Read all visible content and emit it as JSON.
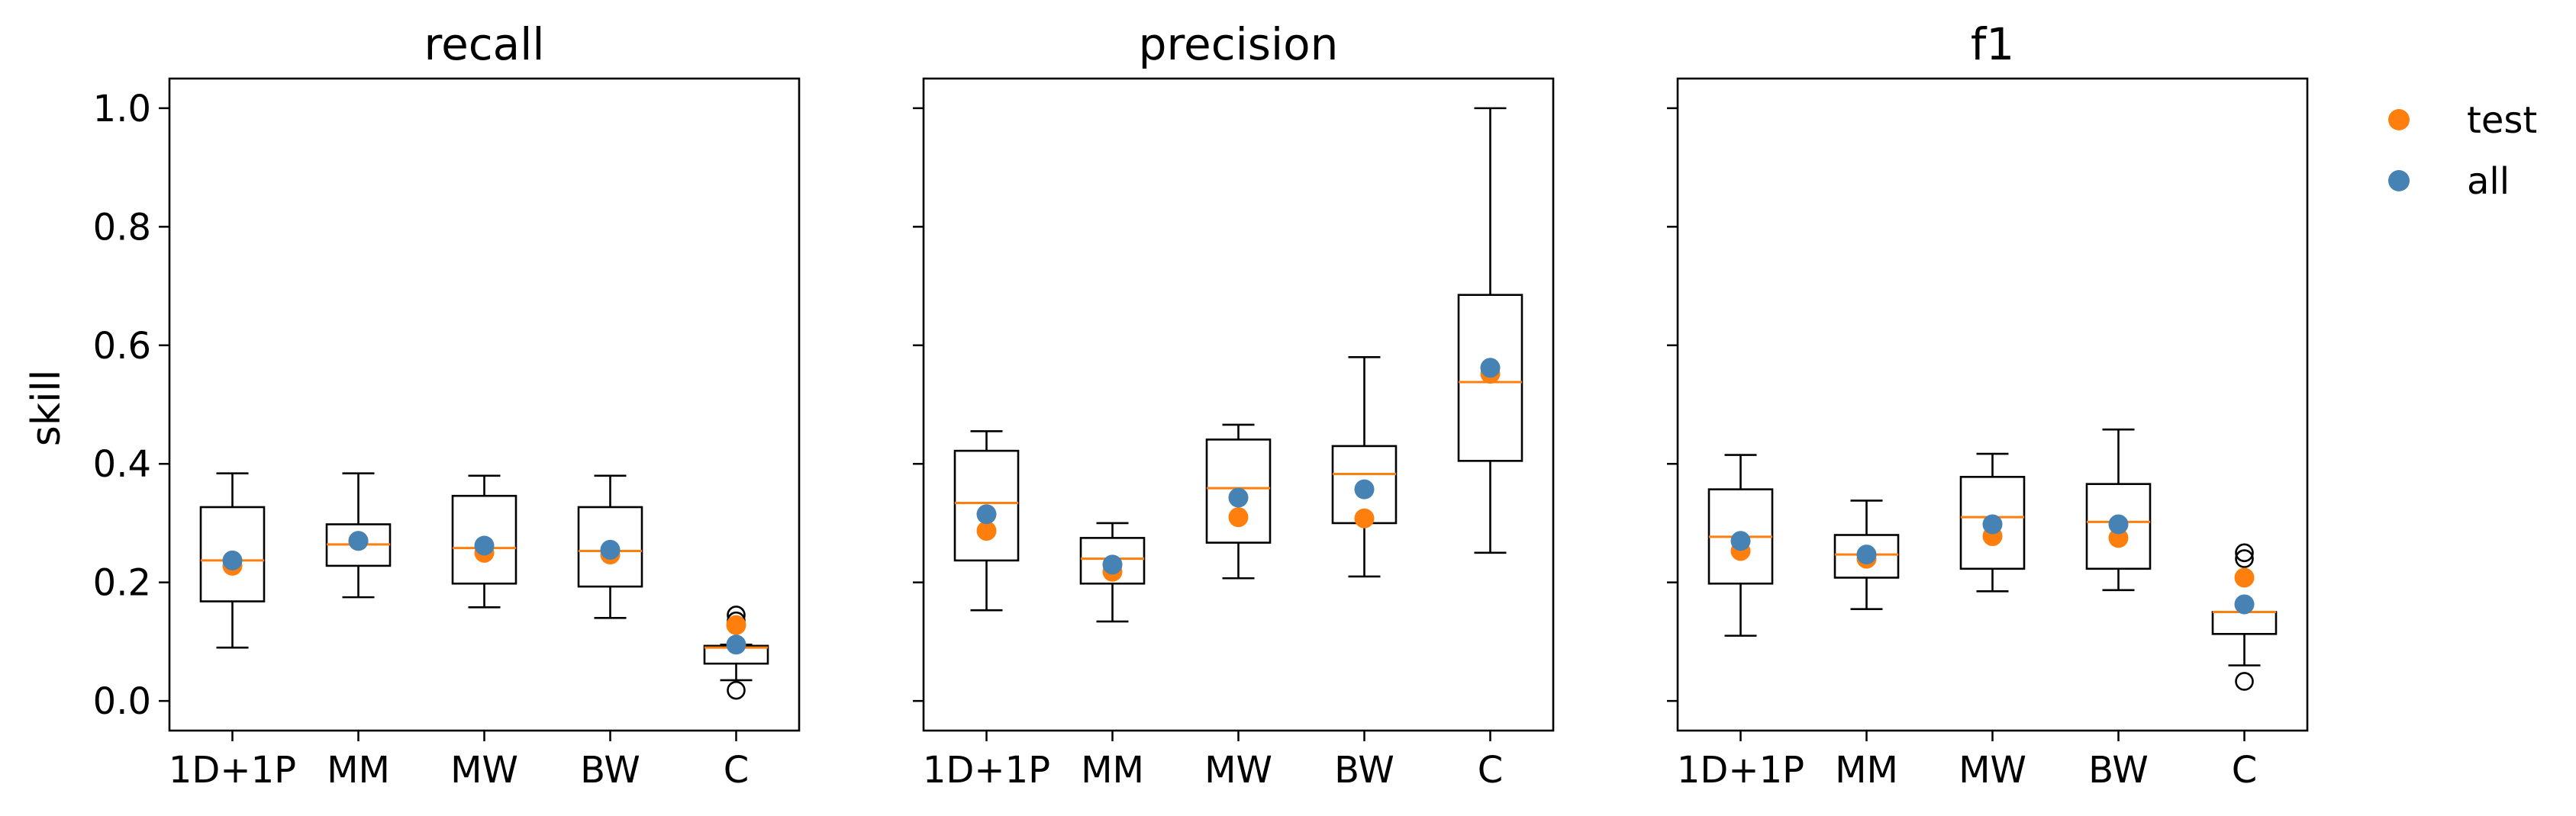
{
  "ylabel": "skill",
  "legend": {
    "placement": "upper-right-outside",
    "entries": [
      {
        "label": "test",
        "color": "#ff7f0e"
      },
      {
        "label": "all",
        "color": "#4682b4"
      }
    ]
  },
  "colors": {
    "median": "#ff7f0e",
    "test_point": "#ff7f0e",
    "all_point": "#4682b4",
    "box": "#000000"
  },
  "chart_data": [
    {
      "type": "box",
      "title": "recall",
      "categories": [
        "1D+1P",
        "MM",
        "MW",
        "BW",
        "C"
      ],
      "ylim": [
        -0.05,
        1.05
      ],
      "yticks": [
        0.0,
        0.2,
        0.4,
        0.6,
        0.8,
        1.0
      ],
      "ytick_labels": [
        "0.0",
        "0.2",
        "0.4",
        "0.6",
        "0.8",
        "1.0"
      ],
      "boxes": [
        {
          "whislo": 0.09,
          "q1": 0.168,
          "med": 0.237,
          "q3": 0.327,
          "whishi": 0.384,
          "fliers": []
        },
        {
          "whislo": 0.175,
          "q1": 0.228,
          "med": 0.264,
          "q3": 0.298,
          "whishi": 0.384,
          "fliers": []
        },
        {
          "whislo": 0.158,
          "q1": 0.198,
          "med": 0.258,
          "q3": 0.346,
          "whishi": 0.38,
          "fliers": []
        },
        {
          "whislo": 0.14,
          "q1": 0.193,
          "med": 0.253,
          "q3": 0.327,
          "whishi": 0.38,
          "fliers": []
        },
        {
          "whislo": 0.035,
          "q1": 0.063,
          "med": 0.09,
          "q3": 0.093,
          "whishi": 0.095,
          "fliers": [
            0.145,
            0.135,
            0.018
          ]
        }
      ],
      "series": [
        {
          "name": "test",
          "values": [
            0.228,
            0.27,
            0.25,
            0.247,
            0.128
          ]
        },
        {
          "name": "all",
          "values": [
            0.237,
            0.27,
            0.262,
            0.255,
            0.095
          ]
        }
      ]
    },
    {
      "type": "box",
      "title": "precision",
      "categories": [
        "1D+1P",
        "MM",
        "MW",
        "BW",
        "C"
      ],
      "ylim": [
        -0.05,
        1.05
      ],
      "yticks": [
        0.0,
        0.2,
        0.4,
        0.6,
        0.8,
        1.0
      ],
      "ytick_labels": [],
      "boxes": [
        {
          "whislo": 0.153,
          "q1": 0.237,
          "med": 0.334,
          "q3": 0.422,
          "whishi": 0.455,
          "fliers": []
        },
        {
          "whislo": 0.134,
          "q1": 0.198,
          "med": 0.24,
          "q3": 0.275,
          "whishi": 0.3,
          "fliers": []
        },
        {
          "whislo": 0.207,
          "q1": 0.267,
          "med": 0.359,
          "q3": 0.441,
          "whishi": 0.466,
          "fliers": []
        },
        {
          "whislo": 0.21,
          "q1": 0.3,
          "med": 0.383,
          "q3": 0.43,
          "whishi": 0.58,
          "fliers": []
        },
        {
          "whislo": 0.25,
          "q1": 0.405,
          "med": 0.538,
          "q3": 0.685,
          "whishi": 1.0,
          "fliers": []
        }
      ],
      "series": [
        {
          "name": "test",
          "values": [
            0.287,
            0.218,
            0.31,
            0.308,
            0.552
          ]
        },
        {
          "name": "all",
          "values": [
            0.315,
            0.23,
            0.343,
            0.357,
            0.562
          ]
        }
      ]
    },
    {
      "type": "box",
      "title": "f1",
      "categories": [
        "1D+1P",
        "MM",
        "MW",
        "BW",
        "C"
      ],
      "ylim": [
        -0.05,
        1.05
      ],
      "yticks": [
        0.0,
        0.2,
        0.4,
        0.6,
        0.8,
        1.0
      ],
      "ytick_labels": [],
      "boxes": [
        {
          "whislo": 0.11,
          "q1": 0.198,
          "med": 0.277,
          "q3": 0.357,
          "whishi": 0.415,
          "fliers": []
        },
        {
          "whislo": 0.155,
          "q1": 0.208,
          "med": 0.247,
          "q3": 0.28,
          "whishi": 0.338,
          "fliers": []
        },
        {
          "whislo": 0.185,
          "q1": 0.223,
          "med": 0.31,
          "q3": 0.378,
          "whishi": 0.417,
          "fliers": []
        },
        {
          "whislo": 0.187,
          "q1": 0.223,
          "med": 0.302,
          "q3": 0.366,
          "whishi": 0.458,
          "fliers": []
        },
        {
          "whislo": 0.06,
          "q1": 0.113,
          "med": 0.15,
          "q3": 0.15,
          "whishi": 0.15,
          "fliers": [
            0.25,
            0.24,
            0.033
          ]
        }
      ],
      "series": [
        {
          "name": "test",
          "values": [
            0.253,
            0.24,
            0.278,
            0.275,
            0.208
          ]
        },
        {
          "name": "all",
          "values": [
            0.27,
            0.247,
            0.298,
            0.298,
            0.163
          ]
        }
      ]
    }
  ]
}
